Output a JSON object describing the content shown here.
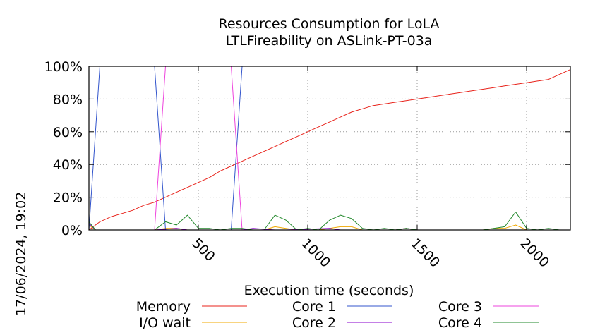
{
  "side_label": "17/06/2024, 19:02",
  "chart_data": {
    "type": "line",
    "title": "Resources Consumption for LoLA",
    "subtitle": "LTLFireability on ASLink-PT-03a",
    "xlabel": "Execution time (seconds)",
    "ylabel": "",
    "xlim": [
      0,
      2200
    ],
    "ylim": [
      0,
      100
    ],
    "xticks": [
      {
        "value": 500,
        "label": "500"
      },
      {
        "value": 1000,
        "label": "1000"
      },
      {
        "value": 1500,
        "label": "1500"
      },
      {
        "value": 2000,
        "label": "2000"
      }
    ],
    "yticks": [
      {
        "value": 0,
        "label": "0%"
      },
      {
        "value": 20,
        "label": "20%"
      },
      {
        "value": 40,
        "label": "40%"
      },
      {
        "value": 60,
        "label": "60%"
      },
      {
        "value": 80,
        "label": "80%"
      },
      {
        "value": 100,
        "label": "100%"
      }
    ],
    "grid": true,
    "legend_position": "bottom",
    "series": [
      {
        "name": "Memory",
        "color": "#e8231b",
        "x": [
          0,
          50,
          100,
          150,
          200,
          250,
          300,
          350,
          400,
          450,
          500,
          550,
          600,
          650,
          700,
          750,
          800,
          850,
          900,
          950,
          1000,
          1050,
          1100,
          1150,
          1200,
          1250,
          1300,
          1350,
          1400,
          1450,
          1500,
          1550,
          1600,
          1650,
          1700,
          1750,
          1800,
          1850,
          1900,
          1950,
          2000,
          2050,
          2100,
          2150,
          2200
        ],
        "y": [
          0,
          5,
          8,
          10,
          12,
          15,
          17,
          20,
          23,
          26,
          29,
          32,
          36,
          39,
          42,
          45,
          48,
          51,
          54,
          57,
          60,
          63,
          66,
          69,
          72,
          74,
          76,
          77,
          78,
          79,
          80,
          81,
          82,
          83,
          84,
          85,
          86,
          87,
          88,
          89,
          90,
          91,
          92,
          95,
          98
        ]
      },
      {
        "name": "I/O wait",
        "color": "#f0a800",
        "x": [
          0,
          30,
          300,
          350,
          400,
          450,
          500,
          550,
          600,
          700,
          750,
          800,
          850,
          900,
          950,
          1000,
          1050,
          1100,
          1150,
          1200,
          1250,
          1300,
          1350,
          1400,
          1450,
          1500,
          1550,
          1600,
          1700,
          1800,
          1850,
          1900,
          1950,
          2000,
          2050,
          2100,
          2150,
          2200
        ],
        "y": [
          3,
          0,
          0,
          1,
          1,
          0,
          0,
          0,
          0,
          0,
          0,
          0,
          2,
          1,
          0,
          0,
          0,
          1,
          2,
          2,
          0,
          0,
          0,
          0,
          1,
          0,
          0,
          0,
          0,
          0,
          1,
          1,
          3,
          0,
          0,
          0,
          0,
          0
        ]
      },
      {
        "name": "Core 1",
        "color": "#3355cc",
        "x": [
          0,
          50,
          300,
          350,
          650,
          700,
          2200
        ],
        "y": [
          0,
          100,
          100,
          0,
          0,
          100,
          100
        ]
      },
      {
        "name": "Core 2",
        "color": "#8800cc",
        "x": [
          0,
          30,
          300,
          400,
          450,
          700,
          750,
          850,
          900,
          1100,
          1150,
          1200,
          1400,
          1450,
          1500,
          2200
        ],
        "y": [
          4,
          0,
          0,
          1,
          0,
          0,
          1,
          0,
          0,
          1,
          0,
          0,
          0,
          1,
          0,
          0
        ]
      },
      {
        "name": "Core 3",
        "color": "#ee44dd",
        "x": [
          0,
          300,
          350,
          650,
          700,
          2200
        ],
        "y": [
          0,
          0,
          100,
          100,
          0,
          0
        ]
      },
      {
        "name": "Core 4",
        "color": "#22882b",
        "x": [
          0,
          30,
          300,
          350,
          400,
          450,
          500,
          550,
          600,
          650,
          700,
          750,
          800,
          850,
          900,
          950,
          1000,
          1050,
          1100,
          1150,
          1200,
          1250,
          1300,
          1350,
          1400,
          1450,
          1500,
          1550,
          1600,
          1700,
          1800,
          1850,
          1900,
          1950,
          2000,
          2050,
          2100,
          2150,
          2200
        ],
        "y": [
          5,
          0,
          0,
          5,
          3,
          9,
          1,
          1,
          0,
          1,
          1,
          0,
          0,
          9,
          6,
          0,
          1,
          0,
          6,
          9,
          7,
          1,
          0,
          1,
          0,
          1,
          0,
          0,
          0,
          0,
          0,
          1,
          2,
          11,
          1,
          0,
          1,
          0,
          0
        ]
      }
    ]
  }
}
